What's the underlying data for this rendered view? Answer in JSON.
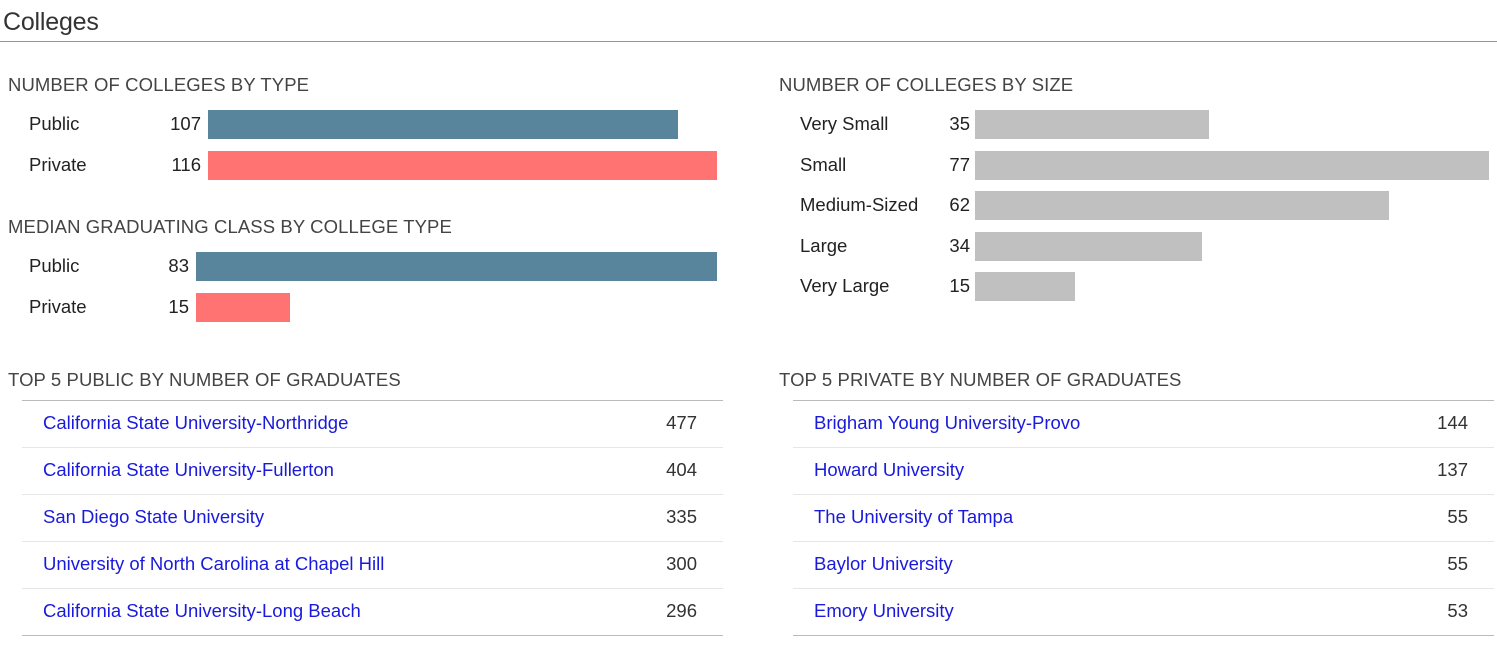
{
  "page": {
    "title": "Colleges"
  },
  "colors": {
    "public": "#58849c",
    "private": "#ff7373",
    "size": "#c0c0c0",
    "link": "#1a1adc",
    "rule": "#6fa0c8"
  },
  "chart_data": [
    {
      "id": "by_type",
      "type": "bar",
      "title": "NUMBER OF COLLEGES BY TYPE",
      "categories": [
        "Public",
        "Private"
      ],
      "values": [
        107,
        116
      ],
      "colors": [
        "#58849c",
        "#ff7373"
      ]
    },
    {
      "id": "median_class",
      "type": "bar",
      "title": "MEDIAN GRADUATING CLASS BY COLLEGE TYPE",
      "categories": [
        "Public",
        "Private"
      ],
      "values": [
        83,
        15
      ],
      "colors": [
        "#58849c",
        "#ff7373"
      ]
    },
    {
      "id": "by_size",
      "type": "bar",
      "title": "NUMBER OF COLLEGES BY SIZE",
      "categories": [
        "Very Small",
        "Small",
        "Medium-Sized",
        "Large",
        "Very Large"
      ],
      "values": [
        35,
        77,
        62,
        34,
        15
      ],
      "colors": [
        "#c0c0c0",
        "#c0c0c0",
        "#c0c0c0",
        "#c0c0c0",
        "#c0c0c0"
      ]
    },
    {
      "id": "top_public",
      "type": "table",
      "title": "TOP 5 PUBLIC BY NUMBER OF GRADUATES",
      "rows": [
        {
          "name": "California State University-Northridge",
          "value": "477"
        },
        {
          "name": "California State University-Fullerton",
          "value": "404"
        },
        {
          "name": "San Diego State University",
          "value": "335"
        },
        {
          "name": "University of North Carolina at Chapel Hill",
          "value": "300"
        },
        {
          "name": "California State University-Long Beach",
          "value": "296"
        }
      ]
    },
    {
      "id": "top_private",
      "type": "table",
      "title": "TOP 5 PRIVATE BY NUMBER OF GRADUATES",
      "rows": [
        {
          "name": "Brigham Young University-Provo",
          "value": "144"
        },
        {
          "name": "Howard University",
          "value": "137"
        },
        {
          "name": "The University of Tampa",
          "value": "55"
        },
        {
          "name": "Baylor University",
          "value": "55"
        },
        {
          "name": "Emory University",
          "value": "53"
        }
      ]
    }
  ]
}
